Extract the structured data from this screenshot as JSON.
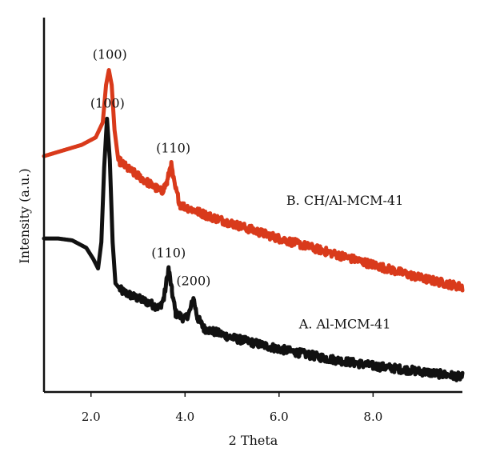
{
  "chart_data": {
    "type": "line",
    "title": "",
    "xlabel": "2 Theta",
    "ylabel": "Intensity (a.u.)",
    "xlim": [
      1.0,
      9.9
    ],
    "ylim": [
      0,
      100
    ],
    "x_ticks": [
      2.0,
      4.0,
      6.0,
      8.0
    ],
    "x_tick_labels": [
      "2.0",
      "4.0",
      "6.0",
      "8.0"
    ],
    "y_ticks_labeled": false,
    "grid": false,
    "legend": "none",
    "series": [
      {
        "name": "A. Al-MCM-41",
        "color": "#111111",
        "points": [
          [
            1.0,
            41.0
          ],
          [
            1.3,
            41.0
          ],
          [
            1.6,
            40.5
          ],
          [
            1.9,
            38.5
          ],
          [
            2.05,
            35.5
          ],
          [
            2.15,
            33.0
          ],
          [
            2.22,
            40.0
          ],
          [
            2.28,
            60.0
          ],
          [
            2.34,
            73.0
          ],
          [
            2.4,
            62.0
          ],
          [
            2.46,
            40.0
          ],
          [
            2.52,
            29.0
          ],
          [
            2.65,
            27.0
          ],
          [
            2.9,
            25.5
          ],
          [
            3.2,
            24.0
          ],
          [
            3.45,
            22.5
          ],
          [
            3.55,
            25.0
          ],
          [
            3.65,
            33.0
          ],
          [
            3.72,
            27.0
          ],
          [
            3.8,
            21.0
          ],
          [
            4.0,
            19.5
          ],
          [
            4.1,
            21.5
          ],
          [
            4.18,
            25.0
          ],
          [
            4.26,
            20.0
          ],
          [
            4.4,
            17.0
          ],
          [
            5.0,
            14.5
          ],
          [
            6.0,
            11.5
          ],
          [
            7.0,
            9.0
          ],
          [
            8.0,
            7.0
          ],
          [
            9.0,
            5.5
          ],
          [
            9.9,
            4.0
          ]
        ]
      },
      {
        "name": "B. CH/Al-MCM-41",
        "color": "#d93a1b",
        "points": [
          [
            1.0,
            63.0
          ],
          [
            1.4,
            64.5
          ],
          [
            1.8,
            66.0
          ],
          [
            2.1,
            68.0
          ],
          [
            2.25,
            72.0
          ],
          [
            2.32,
            82.0
          ],
          [
            2.38,
            86.0
          ],
          [
            2.44,
            82.0
          ],
          [
            2.5,
            70.0
          ],
          [
            2.58,
            62.0
          ],
          [
            2.8,
            59.5
          ],
          [
            3.2,
            56.0
          ],
          [
            3.5,
            53.5
          ],
          [
            3.62,
            56.0
          ],
          [
            3.7,
            61.0
          ],
          [
            3.78,
            55.0
          ],
          [
            3.9,
            50.0
          ],
          [
            4.5,
            47.0
          ],
          [
            5.0,
            45.0
          ],
          [
            6.0,
            41.0
          ],
          [
            7.0,
            37.5
          ],
          [
            8.0,
            34.0
          ],
          [
            9.0,
            30.5
          ],
          [
            9.9,
            28.0
          ]
        ]
      }
    ],
    "annotations": [
      {
        "text": "(100)",
        "x": 2.4,
        "y": 89
      },
      {
        "text": "(110)",
        "x": 3.75,
        "y": 64
      },
      {
        "text": "(100)",
        "x": 2.35,
        "y": 76
      },
      {
        "text": "(110)",
        "x": 3.65,
        "y": 36
      },
      {
        "text": "(200)",
        "x": 4.18,
        "y": 28.5
      }
    ],
    "series_labels": [
      {
        "text": "B. CH/Al-MCM-41",
        "x": 7.4,
        "y": 50
      },
      {
        "text": "A. Al-MCM-41",
        "x": 7.4,
        "y": 17
      }
    ]
  }
}
